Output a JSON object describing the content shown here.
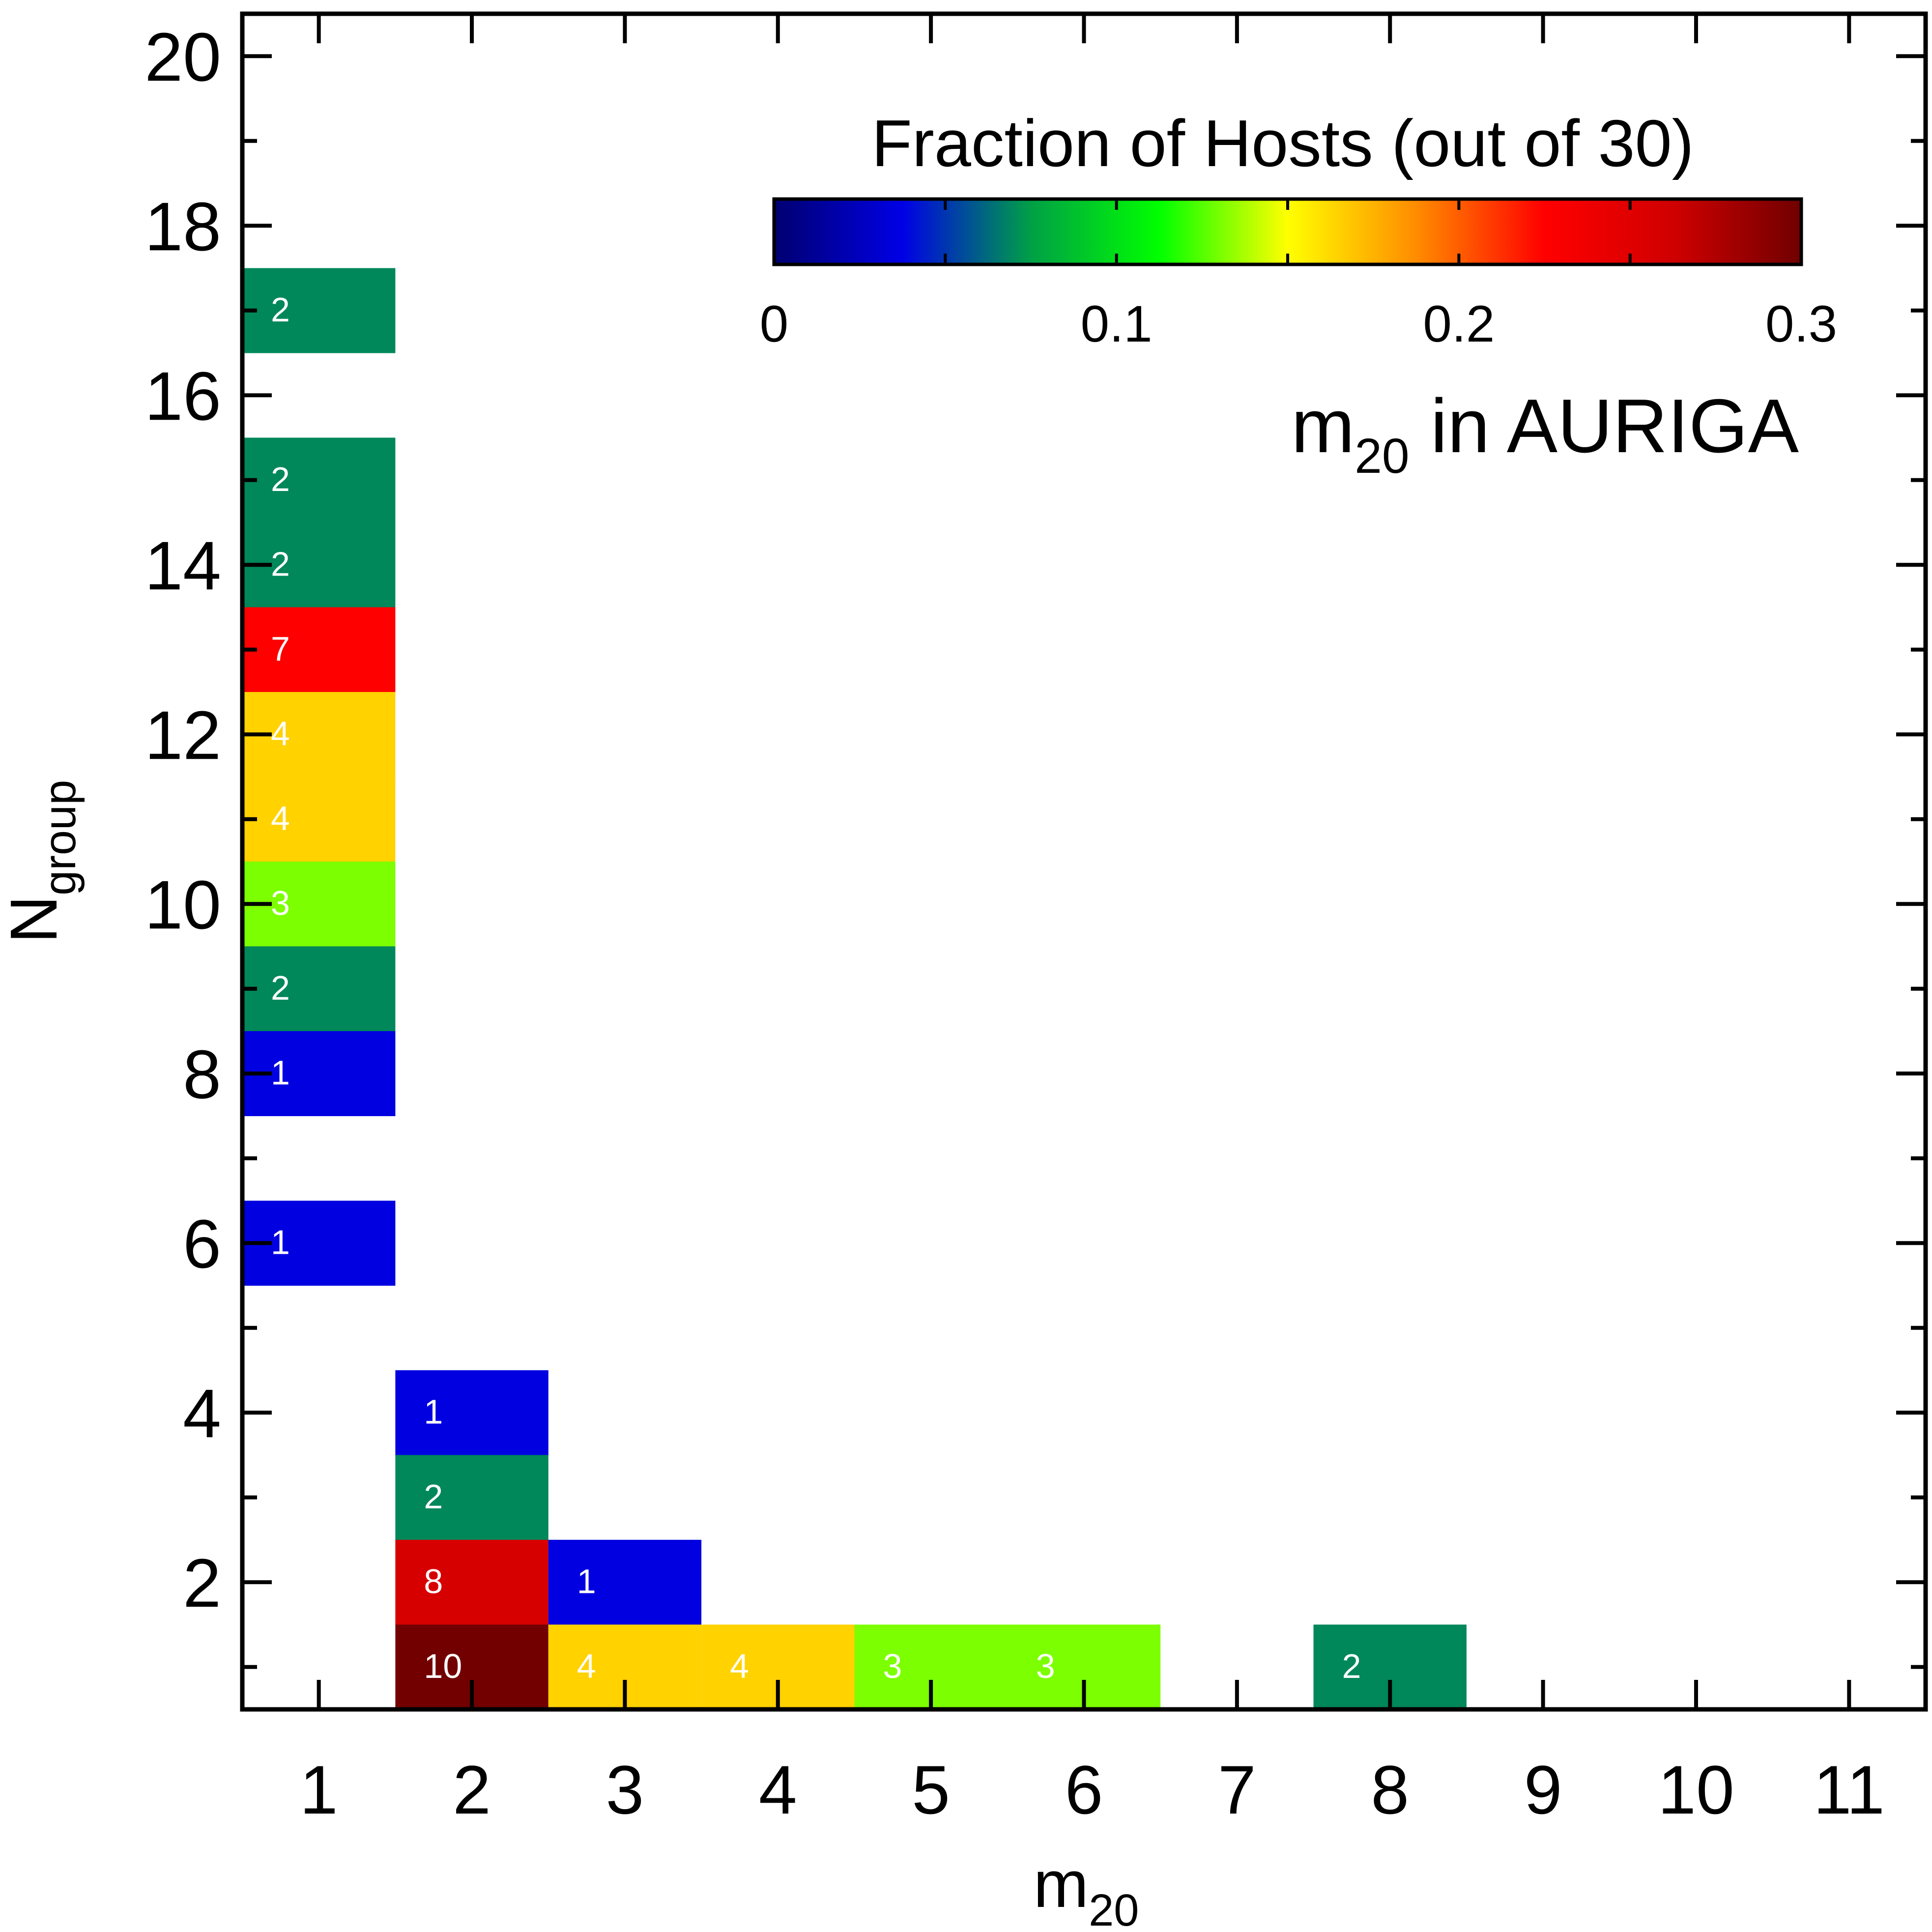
{
  "chart_data": {
    "type": "heatmap",
    "title": "m20 in AURIGA",
    "title_parts": {
      "base": "m",
      "sub": "20",
      "rest": " in AURIGA"
    },
    "xlabel": "m20",
    "xlabel_parts": {
      "base": "m",
      "sub": "20"
    },
    "ylabel": "Ngroup",
    "ylabel_parts": {
      "base": "N",
      "sub": "group"
    },
    "xlim": [
      0.5,
      11.5
    ],
    "ylim": [
      0.5,
      20.5
    ],
    "x_ticks": [
      "1",
      "2",
      "3",
      "4",
      "5",
      "6",
      "7",
      "8",
      "9",
      "10",
      "11"
    ],
    "y_ticks": [
      "2",
      "4",
      "6",
      "8",
      "10",
      "12",
      "14",
      "16",
      "18",
      "20"
    ],
    "cells": [
      {
        "x": 1,
        "y": 17,
        "count": 2,
        "label": "2",
        "color": "#00875a"
      },
      {
        "x": 1,
        "y": 15,
        "count": 2,
        "label": "2",
        "color": "#00875a"
      },
      {
        "x": 1,
        "y": 14,
        "count": 2,
        "label": "2",
        "color": "#00875a"
      },
      {
        "x": 1,
        "y": 13,
        "count": 7,
        "label": "7",
        "color": "#ff0000"
      },
      {
        "x": 1,
        "y": 12,
        "count": 4,
        "label": "4",
        "color": "#ffd200"
      },
      {
        "x": 1,
        "y": 11,
        "count": 4,
        "label": "4",
        "color": "#ffd200"
      },
      {
        "x": 1,
        "y": 10,
        "count": 3,
        "label": "3",
        "color": "#7cff00"
      },
      {
        "x": 1,
        "y": 9,
        "count": 2,
        "label": "2",
        "color": "#00875a"
      },
      {
        "x": 1,
        "y": 8,
        "count": 1,
        "label": "1",
        "color": "#0000e0"
      },
      {
        "x": 1,
        "y": 6,
        "count": 1,
        "label": "1",
        "color": "#0000e0"
      },
      {
        "x": 2,
        "y": 4,
        "count": 1,
        "label": "1",
        "color": "#0000e0"
      },
      {
        "x": 2,
        "y": 3,
        "count": 2,
        "label": "2",
        "color": "#00875a"
      },
      {
        "x": 2,
        "y": 2,
        "count": 8,
        "label": "8",
        "color": "#d70000"
      },
      {
        "x": 2,
        "y": 1,
        "count": 10,
        "label": "10",
        "color": "#730000"
      },
      {
        "x": 3,
        "y": 2,
        "count": 1,
        "label": "1",
        "color": "#0000e0"
      },
      {
        "x": 3,
        "y": 1,
        "count": 4,
        "label": "4",
        "color": "#ffd200"
      },
      {
        "x": 4,
        "y": 1,
        "count": 4,
        "label": "4",
        "color": "#ffd200"
      },
      {
        "x": 5,
        "y": 1,
        "count": 3,
        "label": "3",
        "color": "#7cff00"
      },
      {
        "x": 6,
        "y": 1,
        "count": 3,
        "label": "3",
        "color": "#7cff00"
      },
      {
        "x": 8,
        "y": 1,
        "count": 2,
        "label": "2",
        "color": "#00875a"
      }
    ],
    "colorbar": {
      "label": "Fraction of Hosts (out of 30)",
      "range": [
        0,
        0.3
      ],
      "ticks": [
        "0",
        "0.1",
        "0.2",
        "0.3"
      ],
      "colormap": [
        "#000070",
        "#0000e6",
        "#00a046",
        "#00ff00",
        "#ffff00",
        "#ff8c00",
        "#ff0000",
        "#d00000",
        "#700000"
      ]
    },
    "grid": false,
    "legend": "colorbar at top-right"
  }
}
